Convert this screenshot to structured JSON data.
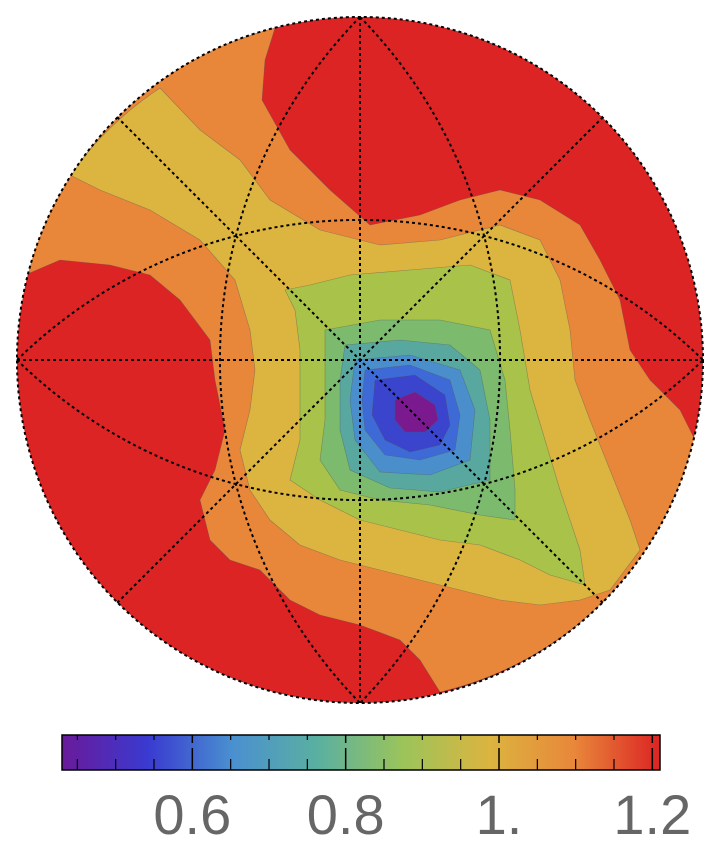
{
  "chart_data": {
    "type": "contour",
    "levels": [
      {
        "value": 0.45,
        "color": "#7a1a8e"
      },
      {
        "value": 0.53,
        "color": "#3a44cc"
      },
      {
        "value": 0.61,
        "color": "#3e6ad8"
      },
      {
        "value": 0.69,
        "color": "#4a8fcc"
      },
      {
        "value": 0.77,
        "color": "#58a8a0"
      },
      {
        "value": 0.85,
        "color": "#7cba6e"
      },
      {
        "value": 0.93,
        "color": "#a8c24a"
      },
      {
        "value": 1.01,
        "color": "#dcb440"
      },
      {
        "value": 1.09,
        "color": "#e8873a"
      },
      {
        "value": 1.17,
        "color": "#dc2424"
      }
    ],
    "colorbar": {
      "range": [
        0.43,
        1.21
      ],
      "colors": [
        "#6a1a9a",
        "#3a3ad0",
        "#4a90d0",
        "#5ab0a0",
        "#9cc45a",
        "#dcb440",
        "#e8873a",
        "#dc2424"
      ],
      "ticks": [
        0.6,
        0.8,
        {
          "value": 1,
          "label": "1."
        },
        1.2
      ],
      "minor_ticks": [
        0.45,
        0.5,
        0.55,
        0.65,
        0.7,
        0.75,
        0.85,
        0.9,
        0.95,
        1.05,
        1.1,
        1.15
      ]
    }
  }
}
